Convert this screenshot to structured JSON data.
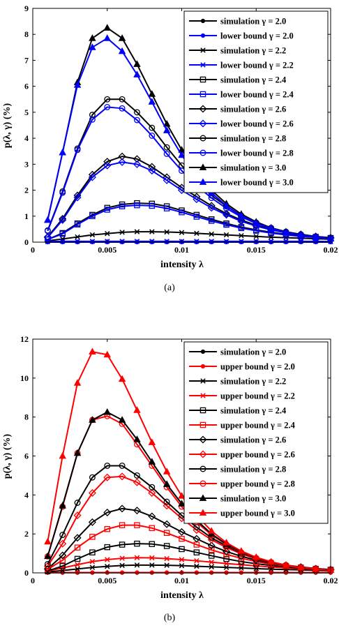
{
  "chart_data": [
    {
      "type": "line",
      "caption": "(a)",
      "xlabel": "intensity λ",
      "ylabel": "p(λ, γ) (%)",
      "xlim": [
        0,
        0.02
      ],
      "ylim": [
        0,
        9
      ],
      "xticks": [
        0,
        0.005,
        0.01,
        0.015,
        0.02
      ],
      "xtick_labels": [
        "0",
        "0.005",
        "0.01",
        "0.015",
        "0.02"
      ],
      "yticks": [
        0,
        1,
        2,
        3,
        4,
        5,
        6,
        7,
        8,
        9
      ],
      "ytick_labels": [
        "0",
        "1",
        "2",
        "3",
        "4",
        "5",
        "6",
        "7",
        "8",
        "9"
      ],
      "grid": false,
      "legend_position": "top-right",
      "x": [
        0.001,
        0.002,
        0.003,
        0.004,
        0.005,
        0.006,
        0.007,
        0.008,
        0.009,
        0.01,
        0.011,
        0.012,
        0.013,
        0.014,
        0.015,
        0.016,
        0.017,
        0.018,
        0.019,
        0.02
      ],
      "series": [
        {
          "name": "simulation γ = 2.0",
          "color": "#000000",
          "marker": "dot",
          "values": [
            0.01,
            0.01,
            0.01,
            0.01,
            0.01,
            0.01,
            0.01,
            0.01,
            0.01,
            0.01,
            0.01,
            0.01,
            0.01,
            0.01,
            0.01,
            0.01,
            0.01,
            0.01,
            0.01,
            0.01
          ]
        },
        {
          "name": "lower bound γ = 2.0",
          "color": "#0000ff",
          "marker": "dot",
          "values": [
            0,
            0,
            0,
            0,
            0,
            0,
            0,
            0,
            0,
            0,
            0,
            0,
            0,
            0,
            0,
            0,
            0,
            0,
            0,
            0
          ]
        },
        {
          "name": "simulation γ = 2.2",
          "color": "#000000",
          "marker": "x",
          "values": [
            0.05,
            0.12,
            0.2,
            0.28,
            0.33,
            0.38,
            0.4,
            0.4,
            0.39,
            0.37,
            0.34,
            0.31,
            0.28,
            0.25,
            0.22,
            0.19,
            0.17,
            0.15,
            0.13,
            0.11
          ]
        },
        {
          "name": "lower bound γ = 2.2",
          "color": "#0000ff",
          "marker": "x",
          "values": [
            0.02,
            0.03,
            0.03,
            0.03,
            0.03,
            0.03,
            0.03,
            0.03,
            0.03,
            0.03,
            0.03,
            0.03,
            0.03,
            0.03,
            0.03,
            0.03,
            0.03,
            0.03,
            0.03,
            0.02
          ]
        },
        {
          "name": "simulation γ = 2.4",
          "color": "#000000",
          "marker": "square",
          "values": [
            0.1,
            0.35,
            0.72,
            1.05,
            1.32,
            1.45,
            1.5,
            1.48,
            1.38,
            1.22,
            1.05,
            0.88,
            0.72,
            0.58,
            0.47,
            0.38,
            0.3,
            0.24,
            0.2,
            0.16
          ]
        },
        {
          "name": "lower bound γ = 2.4",
          "color": "#0000ff",
          "marker": "square",
          "values": [
            0.1,
            0.32,
            0.68,
            1.0,
            1.25,
            1.38,
            1.42,
            1.4,
            1.3,
            1.15,
            0.98,
            0.82,
            0.67,
            0.54,
            0.44,
            0.35,
            0.28,
            0.22,
            0.18,
            0.14
          ]
        },
        {
          "name": "simulation γ = 2.6",
          "color": "#000000",
          "marker": "diamond",
          "values": [
            0.2,
            0.9,
            1.8,
            2.6,
            3.1,
            3.3,
            3.2,
            2.9,
            2.5,
            2.1,
            1.75,
            1.4,
            1.1,
            0.85,
            0.65,
            0.5,
            0.38,
            0.3,
            0.22,
            0.17
          ]
        },
        {
          "name": "lower bound γ = 2.6",
          "color": "#0000ff",
          "marker": "diamond",
          "values": [
            0.18,
            0.85,
            1.72,
            2.5,
            2.95,
            3.08,
            3.0,
            2.75,
            2.38,
            2.0,
            1.65,
            1.32,
            1.05,
            0.8,
            0.62,
            0.47,
            0.36,
            0.28,
            0.21,
            0.16
          ]
        },
        {
          "name": "simulation γ = 2.8",
          "color": "#000000",
          "marker": "circle",
          "values": [
            0.45,
            1.95,
            3.6,
            4.9,
            5.5,
            5.5,
            5.0,
            4.4,
            3.65,
            2.95,
            2.35,
            1.8,
            1.38,
            1.02,
            0.75,
            0.55,
            0.4,
            0.3,
            0.22,
            0.16
          ]
        },
        {
          "name": "lower bound γ = 2.8",
          "color": "#0000ff",
          "marker": "circle",
          "values": [
            0.43,
            1.9,
            3.55,
            4.72,
            5.2,
            5.15,
            4.7,
            4.1,
            3.4,
            2.75,
            2.18,
            1.7,
            1.3,
            0.97,
            0.72,
            0.53,
            0.38,
            0.28,
            0.21,
            0.15
          ]
        },
        {
          "name": "simulation γ = 3.0",
          "color": "#000000",
          "marker": "triangle",
          "values": [
            0.85,
            3.45,
            6.15,
            7.85,
            8.25,
            7.85,
            6.85,
            5.7,
            4.55,
            3.55,
            2.7,
            2.0,
            1.48,
            1.08,
            0.78,
            0.55,
            0.4,
            0.28,
            0.2,
            0.14
          ]
        },
        {
          "name": "lower bound γ = 3.0",
          "color": "#0000ff",
          "marker": "triangle",
          "values": [
            0.85,
            3.45,
            6.05,
            7.5,
            7.85,
            7.35,
            6.45,
            5.4,
            4.3,
            3.35,
            2.55,
            1.9,
            1.4,
            1.02,
            0.74,
            0.53,
            0.38,
            0.27,
            0.19,
            0.13
          ]
        }
      ]
    },
    {
      "type": "line",
      "caption": "(b)",
      "xlabel": "intensity λ",
      "ylabel": "p(λ, γ) (%)",
      "xlim": [
        0,
        0.02
      ],
      "ylim": [
        0,
        12
      ],
      "xticks": [
        0,
        0.005,
        0.01,
        0.015,
        0.02
      ],
      "xtick_labels": [
        "0",
        "0.005",
        "0.01",
        "0.015",
        "0.02"
      ],
      "yticks": [
        0,
        2,
        4,
        6,
        8,
        10,
        12
      ],
      "ytick_labels": [
        "0",
        "2",
        "4",
        "6",
        "8",
        "10",
        "12"
      ],
      "grid": false,
      "legend_position": "top-right",
      "x": [
        0.001,
        0.002,
        0.003,
        0.004,
        0.005,
        0.006,
        0.007,
        0.008,
        0.009,
        0.01,
        0.011,
        0.012,
        0.013,
        0.014,
        0.015,
        0.016,
        0.017,
        0.018,
        0.019,
        0.02
      ],
      "series": [
        {
          "name": "simulation γ = 2.0",
          "color": "#000000",
          "marker": "dot",
          "values": [
            0.01,
            0.01,
            0.01,
            0.01,
            0.01,
            0.01,
            0.01,
            0.01,
            0.01,
            0.01,
            0.01,
            0.01,
            0.01,
            0.01,
            0.01,
            0.01,
            0.01,
            0.01,
            0.01,
            0.01
          ]
        },
        {
          "name": "upper bound γ = 2.0",
          "color": "#ff0000",
          "marker": "dot",
          "values": [
            0.02,
            0.02,
            0.02,
            0.02,
            0.02,
            0.02,
            0.02,
            0.02,
            0.02,
            0.02,
            0.02,
            0.02,
            0.02,
            0.02,
            0.02,
            0.02,
            0.02,
            0.02,
            0.02,
            0.02
          ]
        },
        {
          "name": "simulation γ = 2.2",
          "color": "#000000",
          "marker": "x",
          "values": [
            0.05,
            0.12,
            0.2,
            0.28,
            0.33,
            0.38,
            0.4,
            0.4,
            0.39,
            0.37,
            0.34,
            0.31,
            0.28,
            0.25,
            0.22,
            0.19,
            0.17,
            0.15,
            0.13,
            0.11
          ]
        },
        {
          "name": "upper bound γ = 2.2",
          "color": "#ff0000",
          "marker": "x",
          "values": [
            0.1,
            0.25,
            0.42,
            0.58,
            0.68,
            0.75,
            0.78,
            0.77,
            0.73,
            0.68,
            0.62,
            0.55,
            0.48,
            0.42,
            0.36,
            0.3,
            0.26,
            0.22,
            0.18,
            0.15
          ]
        },
        {
          "name": "simulation γ = 2.4",
          "color": "#000000",
          "marker": "square",
          "values": [
            0.1,
            0.35,
            0.72,
            1.05,
            1.32,
            1.45,
            1.5,
            1.48,
            1.38,
            1.22,
            1.05,
            0.88,
            0.72,
            0.58,
            0.47,
            0.38,
            0.3,
            0.24,
            0.2,
            0.16
          ]
        },
        {
          "name": "upper bound γ = 2.4",
          "color": "#ff0000",
          "marker": "square",
          "values": [
            0.18,
            0.65,
            1.3,
            1.85,
            2.25,
            2.45,
            2.45,
            2.3,
            2.05,
            1.75,
            1.45,
            1.18,
            0.95,
            0.75,
            0.58,
            0.45,
            0.35,
            0.27,
            0.21,
            0.16
          ]
        },
        {
          "name": "simulation γ = 2.6",
          "color": "#000000",
          "marker": "diamond",
          "values": [
            0.2,
            0.9,
            1.8,
            2.6,
            3.1,
            3.3,
            3.2,
            2.9,
            2.5,
            2.1,
            1.75,
            1.4,
            1.1,
            0.85,
            0.65,
            0.5,
            0.38,
            0.3,
            0.22,
            0.17
          ]
        },
        {
          "name": "upper bound γ = 2.6",
          "color": "#ff0000",
          "marker": "diamond",
          "values": [
            0.35,
            1.5,
            2.95,
            4.1,
            4.9,
            4.95,
            4.65,
            4.1,
            3.45,
            2.8,
            2.2,
            1.7,
            1.3,
            0.98,
            0.72,
            0.53,
            0.39,
            0.29,
            0.21,
            0.15
          ]
        },
        {
          "name": "simulation γ = 2.8",
          "color": "#000000",
          "marker": "circle",
          "values": [
            0.45,
            1.95,
            3.6,
            4.9,
            5.5,
            5.5,
            5.0,
            4.4,
            3.65,
            2.95,
            2.35,
            1.8,
            1.38,
            1.02,
            0.75,
            0.55,
            0.4,
            0.3,
            0.22,
            0.16
          ]
        },
        {
          "name": "upper bound γ = 2.8",
          "color": "#ff0000",
          "marker": "circle",
          "values": [
            0.85,
            3.4,
            6.15,
            7.85,
            8.05,
            7.65,
            6.6,
            5.5,
            4.4,
            3.4,
            2.6,
            1.95,
            1.45,
            1.05,
            0.76,
            0.55,
            0.39,
            0.28,
            0.2,
            0.14
          ]
        },
        {
          "name": "simulation γ = 3.0",
          "color": "#000000",
          "marker": "triangle",
          "values": [
            0.85,
            3.45,
            6.15,
            7.85,
            8.25,
            7.85,
            6.85,
            5.7,
            4.55,
            3.55,
            2.7,
            2.0,
            1.48,
            1.08,
            0.78,
            0.55,
            0.4,
            0.28,
            0.2,
            0.14
          ]
        },
        {
          "name": "upper bound γ = 3.0",
          "color": "#ff0000",
          "marker": "triangle",
          "values": [
            1.6,
            6.0,
            9.75,
            11.35,
            11.2,
            9.95,
            8.35,
            6.7,
            5.2,
            3.95,
            2.95,
            2.15,
            1.55,
            1.12,
            0.8,
            0.57,
            0.4,
            0.28,
            0.2,
            0.14
          ]
        }
      ]
    }
  ]
}
